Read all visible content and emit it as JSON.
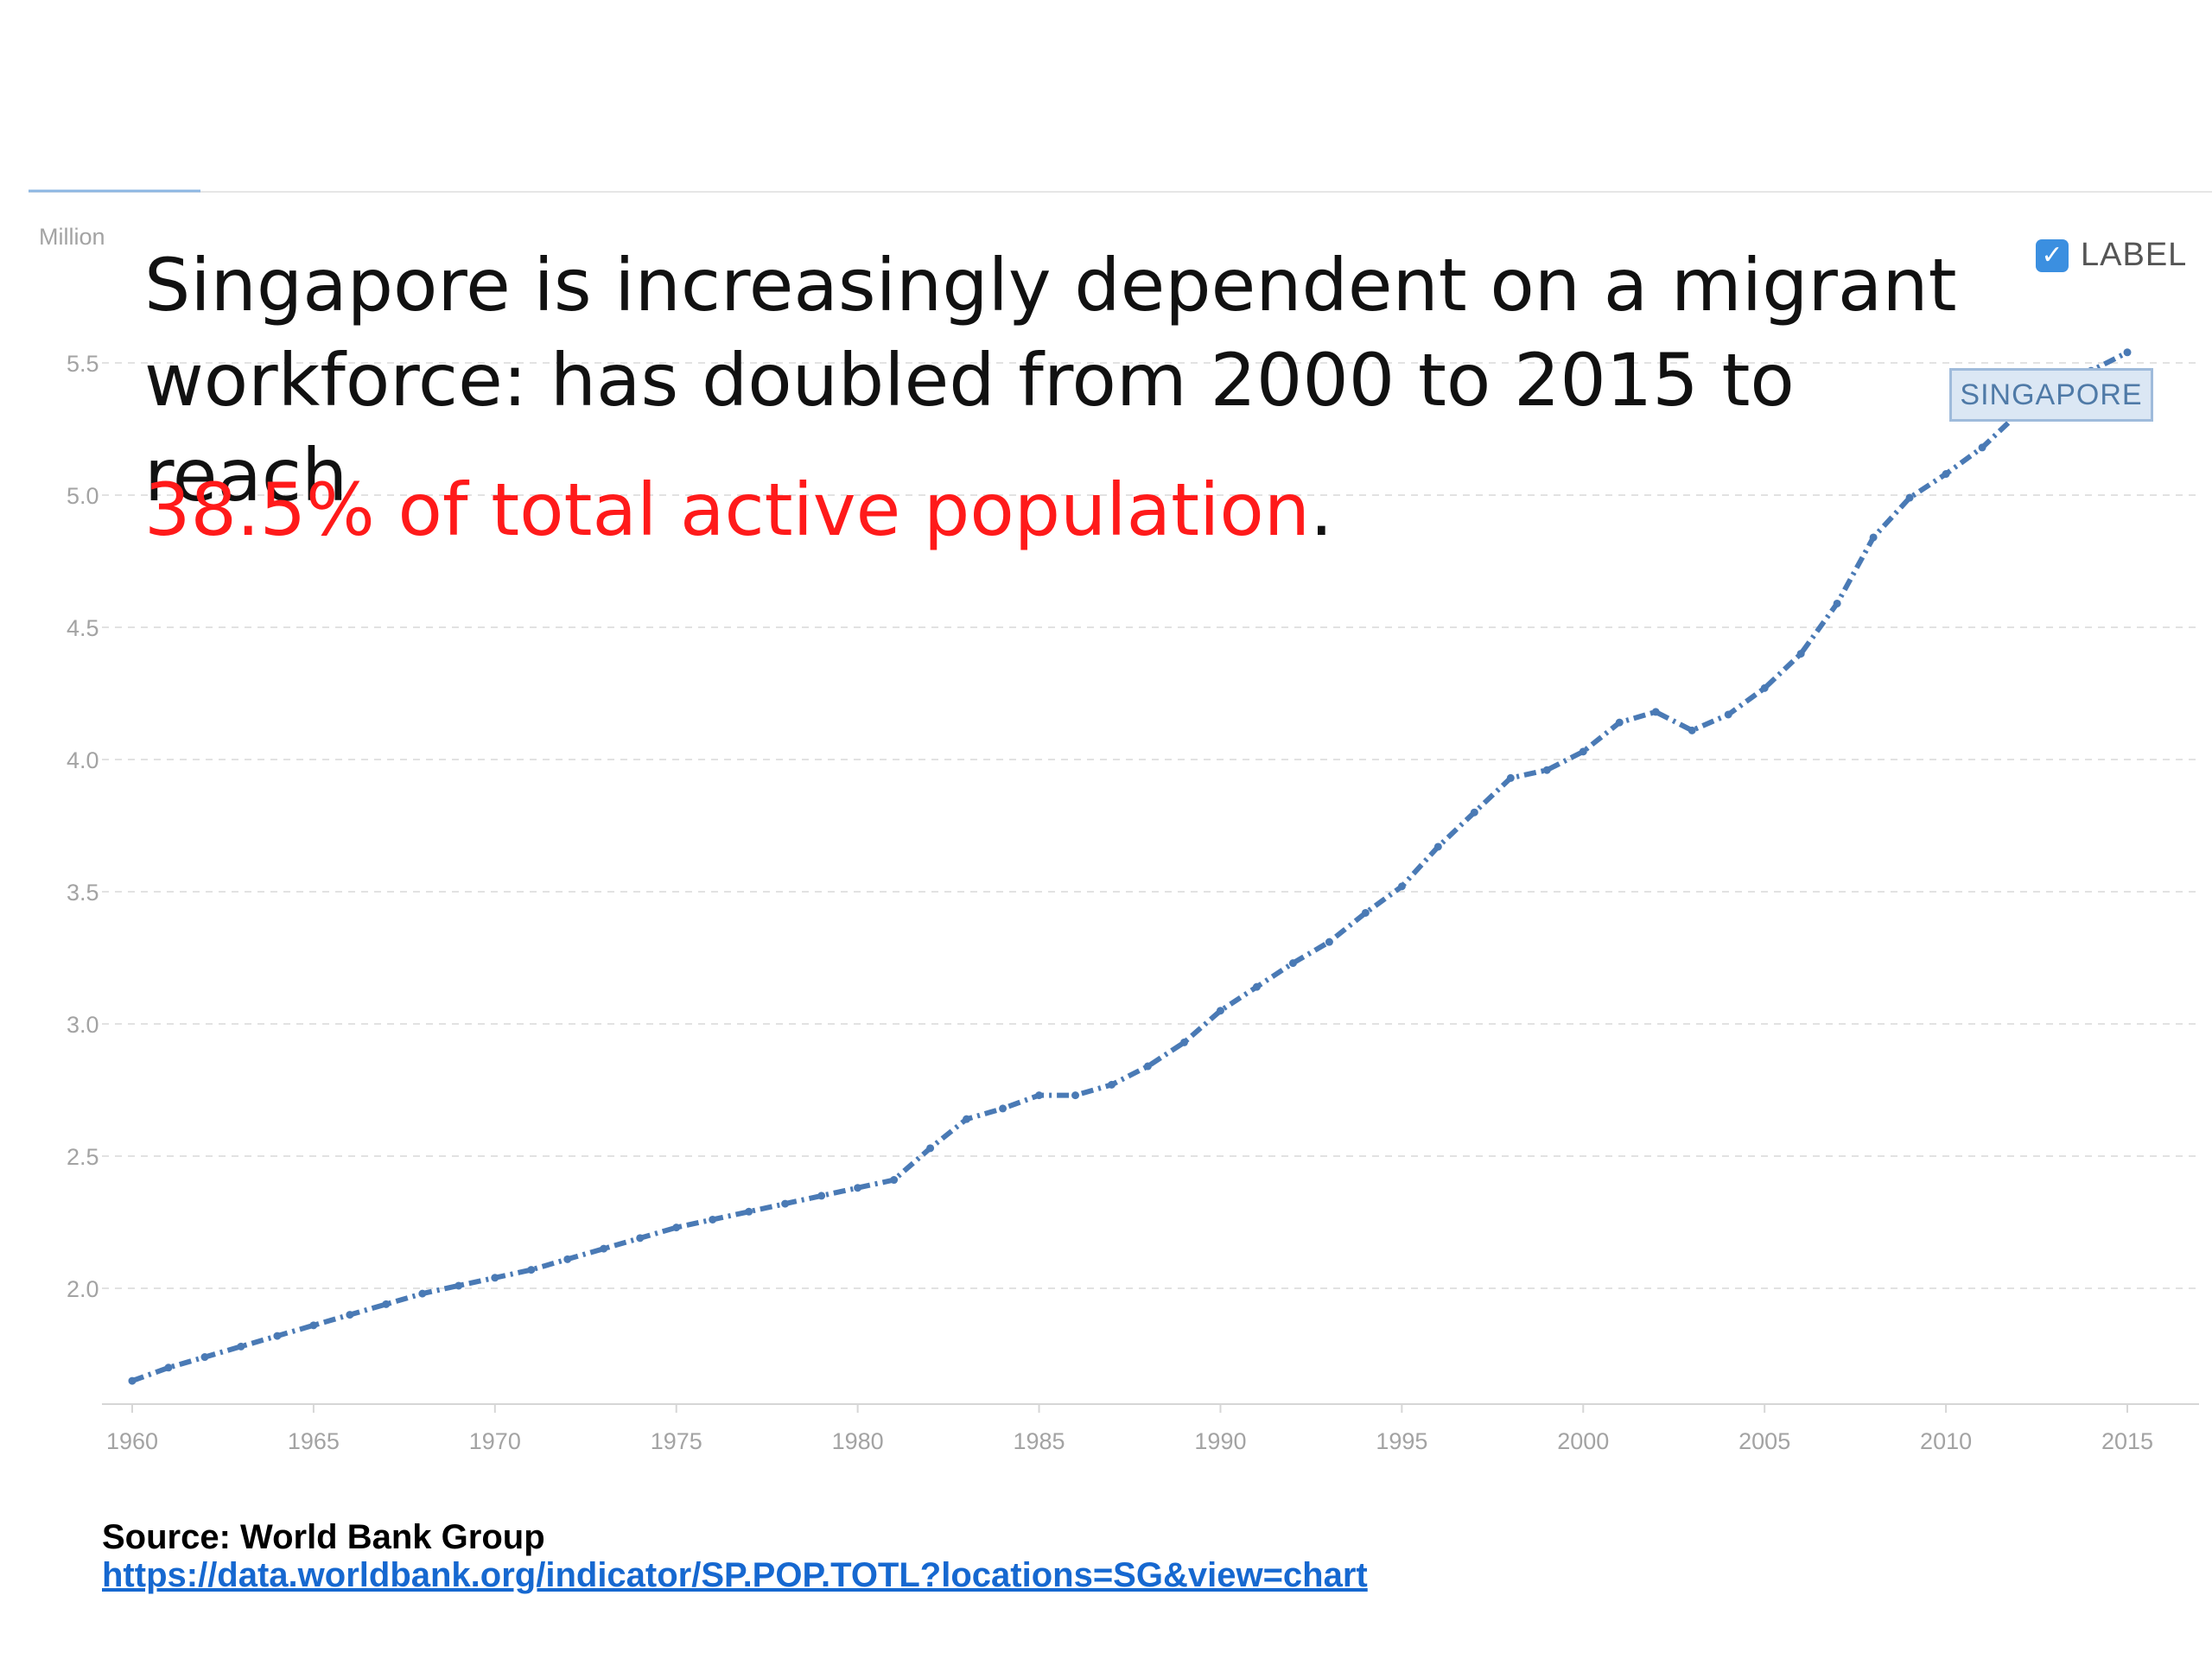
{
  "headline": {
    "line1": "Singapore is increasingly dependent on a migrant workforce: has doubled from 2000 to 2015 to reach",
    "highlight": "38.5% of total active population",
    "end_punct": "."
  },
  "legend": {
    "label_toggle": "LABEL",
    "checked": true,
    "series_tag": "SINGAPORE",
    "check_glyph": "✓"
  },
  "source": {
    "title": "Source: World Bank Group",
    "url": "https://data.worldbank.org/indicator/SP.POP.TOTL?locations=SG&view=chart"
  },
  "colors": {
    "line": "#4a7ab5",
    "grid": "#e2e2e2",
    "highlight": "#ff1a1a",
    "link": "#1668d0"
  },
  "chart_data": {
    "type": "line",
    "ylabel": "Million",
    "xlabel": "",
    "ylim": [
      1.6,
      5.6
    ],
    "xlim": [
      1960,
      2015
    ],
    "grid": "horizontal dashed",
    "y_ticks": [
      "2.0",
      "2.5",
      "3.0",
      "3.5",
      "4.0",
      "4.5",
      "5.0",
      "5.5"
    ],
    "x_ticks": [
      "1960",
      "1965",
      "1970",
      "1975",
      "1980",
      "1985",
      "1990",
      "1995",
      "2000",
      "2005",
      "2010",
      "2015"
    ],
    "series": [
      {
        "name": "SINGAPORE",
        "x": [
          1960,
          1961,
          1962,
          1963,
          1964,
          1965,
          1966,
          1967,
          1968,
          1969,
          1970,
          1971,
          1972,
          1973,
          1974,
          1975,
          1976,
          1977,
          1978,
          1979,
          1980,
          1981,
          1982,
          1983,
          1984,
          1985,
          1986,
          1987,
          1988,
          1989,
          1990,
          1991,
          1992,
          1993,
          1994,
          1995,
          1996,
          1997,
          1998,
          1999,
          2000,
          2001,
          2002,
          2003,
          2004,
          2005,
          2006,
          2007,
          2008,
          2009,
          2010,
          2011,
          2012,
          2013,
          2014,
          2015
        ],
        "values": [
          1.65,
          1.7,
          1.74,
          1.78,
          1.82,
          1.86,
          1.9,
          1.94,
          1.98,
          2.01,
          2.04,
          2.07,
          2.11,
          2.15,
          2.19,
          2.23,
          2.26,
          2.29,
          2.32,
          2.35,
          2.38,
          2.41,
          2.53,
          2.64,
          2.68,
          2.73,
          2.73,
          2.77,
          2.84,
          2.93,
          3.05,
          3.14,
          3.23,
          3.31,
          3.42,
          3.52,
          3.67,
          3.8,
          3.93,
          3.96,
          4.03,
          4.14,
          4.18,
          4.11,
          4.17,
          4.27,
          4.4,
          4.59,
          4.84,
          4.99,
          5.08,
          5.18,
          5.31,
          5.4,
          5.47,
          5.54
        ]
      }
    ]
  }
}
